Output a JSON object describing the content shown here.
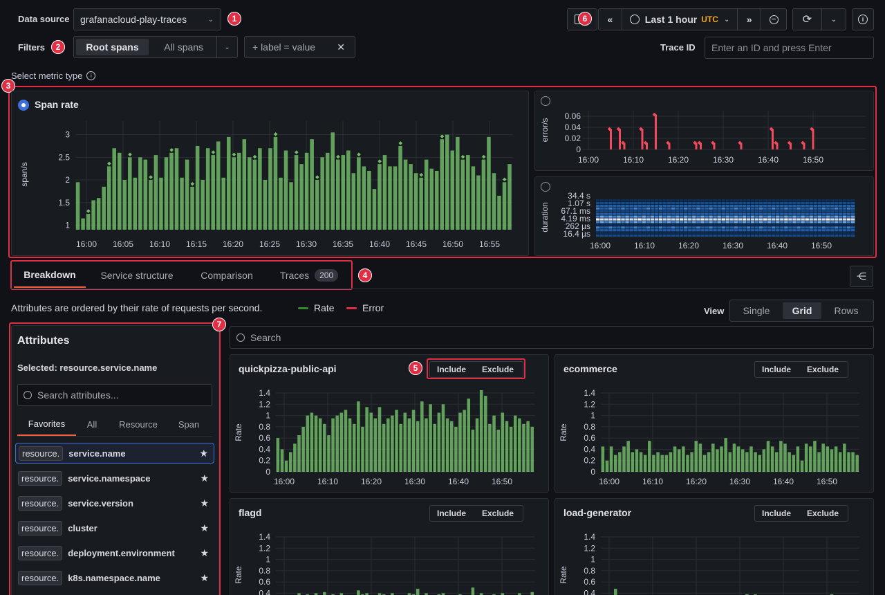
{
  "top": {
    "datasource_label": "Data source",
    "datasource_value": "grafanacloud-play-traces",
    "filters_label": "Filters",
    "root_spans": "Root spans",
    "all_spans": "All spans",
    "label_filter": "+ label = value",
    "trace_id_label": "Trace ID",
    "trace_id_placeholder": "Enter an ID and press Enter",
    "time_range": "Last 1 hour",
    "timezone": "UTC"
  },
  "badges": [
    "1",
    "2",
    "3",
    "4",
    "5",
    "6",
    "7"
  ],
  "metric": {
    "select_label": "Select metric type",
    "span_rate_title": "Span rate",
    "span_rate_ylabel": "span/s",
    "error_ylabel": "error/s",
    "duration_ylabel": "duration"
  },
  "tabs": {
    "breakdown": "Breakdown",
    "service_structure": "Service structure",
    "comparison": "Comparison",
    "traces": "Traces",
    "traces_count": "200"
  },
  "breakdown": {
    "description": "Attributes are ordered by their rate of requests per second.",
    "legend_rate": "Rate",
    "legend_error": "Error",
    "view_label": "View",
    "view_single": "Single",
    "view_grid": "Grid",
    "view_rows": "Rows",
    "search_placeholder": "Search"
  },
  "attributes": {
    "title": "Attributes",
    "selected": "Selected: resource.service.name",
    "search_placeholder": "Search attributes...",
    "tabs": [
      "Favorites",
      "All",
      "Resource",
      "Span"
    ],
    "items": [
      {
        "scope": "resource.",
        "name": "service.name"
      },
      {
        "scope": "resource.",
        "name": "service.namespace"
      },
      {
        "scope": "resource.",
        "name": "service.version"
      },
      {
        "scope": "resource.",
        "name": "cluster"
      },
      {
        "scope": "resource.",
        "name": "deployment.environment"
      },
      {
        "scope": "resource.",
        "name": "k8s.namespace.name"
      }
    ]
  },
  "panels": [
    {
      "title": "quickpizza-public-api",
      "include": "Include",
      "exclude": "Exclude",
      "ylabel": "Rate"
    },
    {
      "title": "ecommerce",
      "include": "Include",
      "exclude": "Exclude",
      "ylabel": "Rate"
    },
    {
      "title": "flagd",
      "include": "Include",
      "exclude": "Exclude",
      "ylabel": "Rate"
    },
    {
      "title": "load-generator",
      "include": "Include",
      "exclude": "Exclude",
      "ylabel": "Rate"
    }
  ],
  "colors": {
    "bar": "#73bf69",
    "error": "#f2495c",
    "accent": "#3d71d9",
    "highlight": "#e02f44",
    "utc": "#f5a623"
  },
  "chart_data": [
    {
      "type": "bar",
      "name": "span_rate",
      "x_ticks": [
        "16:00",
        "16:05",
        "16:10",
        "16:15",
        "16:20",
        "16:25",
        "16:30",
        "16:35",
        "16:40",
        "16:45",
        "16:50",
        "16:55"
      ],
      "y_ticks": [
        "1",
        "1.5",
        "2",
        "2.5",
        "3"
      ],
      "ylim": [
        0.9,
        3.3
      ],
      "values": [
        1.95,
        1.15,
        1.25,
        1.55,
        1.6,
        1.85,
        2.3,
        2.7,
        2.6,
        2.0,
        2.5,
        2.05,
        2.5,
        2.45,
        2.0,
        2.55,
        2.05,
        2.5,
        2.6,
        2.7,
        2.05,
        2.45,
        1.85,
        2.75,
        2.0,
        2.7,
        2.55,
        2.85,
        2.05,
        2.95,
        2.5,
        2.6,
        2.9,
        2.5,
        2.45,
        2.7,
        2.0,
        2.7,
        2.95,
        2.05,
        2.65,
        1.95,
        2.55,
        2.35,
        2.6,
        2.9,
        2.0,
        2.5,
        2.6,
        3.05,
        2.45,
        2.55,
        2.65,
        2.15,
        2.5,
        2.3,
        2.2,
        1.8,
        2.35,
        2.55,
        2.3,
        2.3,
        2.75,
        2.45,
        2.35,
        2.15,
        2.05,
        2.45,
        2.25,
        2.2,
        2.9,
        3.0,
        2.65,
        2.95,
        2.45,
        2.55,
        2.3,
        2.1,
        2.45,
        2.95,
        2.15,
        1.65,
        1.95,
        2.35
      ],
      "grid": true
    },
    {
      "type": "bar",
      "name": "error_rate",
      "x_ticks": [
        "16:00",
        "16:10",
        "16:20",
        "16:30",
        "16:40",
        "16:50"
      ],
      "y_ticks": [
        "0",
        "0.02",
        "0.04",
        "0.06"
      ],
      "ylim": [
        0,
        0.07
      ],
      "points": [
        [
          16.05,
          0.037
        ],
        [
          16.07,
          0.037
        ],
        [
          16.08,
          0.012
        ],
        [
          16.12,
          0.037
        ],
        [
          16.13,
          0.012
        ],
        [
          16.15,
          0.063
        ],
        [
          16.18,
          0.012
        ],
        [
          16.24,
          0.012
        ],
        [
          16.25,
          0.012
        ],
        [
          16.28,
          0.012
        ],
        [
          16.34,
          0.012
        ],
        [
          16.41,
          0.037
        ],
        [
          16.42,
          0.012
        ],
        [
          16.45,
          0.012
        ],
        [
          16.48,
          0.012
        ],
        [
          16.5,
          0.037
        ]
      ],
      "grid": true
    },
    {
      "type": "heatmap",
      "name": "duration",
      "x_ticks": [
        "16:00",
        "16:10",
        "16:20",
        "16:30",
        "16:40",
        "16:50"
      ],
      "y_ticks": [
        "34.4 s",
        "1.07 s",
        "67.1 ms",
        "4.19 ms",
        "262 µs",
        "16.4 µs"
      ]
    },
    {
      "type": "bar",
      "name": "quickpizza-public-api",
      "ylabel": "Rate",
      "x_ticks": [
        "16:00",
        "16:10",
        "16:20",
        "16:30",
        "16:40",
        "16:50"
      ],
      "y_ticks": [
        "0",
        "0.2",
        "0.4",
        "0.6",
        "0.8",
        "1",
        "1.2",
        "1.4"
      ],
      "ylim": [
        0,
        1.4
      ],
      "values": [
        0.6,
        0.4,
        0.2,
        0.35,
        0.5,
        0.65,
        0.8,
        1.0,
        1.05,
        1.0,
        0.95,
        0.85,
        0.65,
        0.95,
        1.0,
        1.05,
        1.1,
        0.95,
        0.85,
        1.25,
        0.8,
        1.15,
        1.05,
        0.95,
        1.15,
        0.85,
        0.95,
        1.0,
        1.1,
        0.85,
        1.05,
        0.95,
        1.1,
        0.9,
        1.25,
        0.95,
        1.2,
        0.85,
        1.05,
        1.2,
        0.95,
        0.9,
        0.8,
        1.05,
        1.1,
        1.3,
        0.75,
        0.95,
        1.45,
        1.35,
        0.85,
        1.0,
        0.75,
        1.05,
        0.9,
        0.8,
        1.0,
        0.95,
        0.85,
        0.9,
        0.8
      ],
      "grid": true
    },
    {
      "type": "bar",
      "name": "ecommerce",
      "ylabel": "Rate",
      "x_ticks": [
        "16:00",
        "16:10",
        "16:20",
        "16:30",
        "16:40",
        "16:50"
      ],
      "y_ticks": [
        "0",
        "0.2",
        "0.4",
        "0.6",
        "0.8",
        "1",
        "1.2",
        "1.4"
      ],
      "ylim": [
        0,
        1.4
      ],
      "values": [
        0.45,
        0.2,
        0.45,
        0.3,
        0.35,
        0.45,
        0.55,
        0.35,
        0.4,
        0.35,
        0.3,
        0.55,
        0.3,
        0.35,
        0.3,
        0.3,
        0.35,
        0.45,
        0.4,
        0.45,
        0.3,
        0.35,
        0.55,
        0.5,
        0.3,
        0.35,
        0.5,
        0.4,
        0.45,
        0.6,
        0.35,
        0.5,
        0.45,
        0.4,
        0.35,
        0.45,
        0.35,
        0.3,
        0.4,
        0.55,
        0.45,
        0.35,
        0.55,
        0.5,
        0.35,
        0.3,
        0.45,
        0.2,
        0.5,
        0.45,
        0.55,
        0.35,
        0.5,
        0.45,
        0.4,
        0.45,
        0.35,
        0.5,
        0.35,
        0.35,
        0.3
      ],
      "grid": true
    },
    {
      "type": "bar",
      "name": "flagd",
      "ylabel": "Rate",
      "x_ticks": [],
      "y_ticks": [
        "0.4",
        "0.6",
        "0.8",
        "1",
        "1.2",
        "1.4"
      ],
      "ylim": [
        0,
        1.4
      ],
      "values": [
        0.1,
        0.05,
        0.1,
        0.05,
        0.1,
        0.4,
        0.05,
        0.38,
        0.2,
        0.4,
        0.1,
        0.42,
        0.2,
        0.38,
        0.1,
        0.4,
        0.3,
        0.35,
        0.1,
        0.45,
        0.38,
        0.4,
        0.2,
        0.35,
        0.4,
        0.38,
        0.1,
        0.4,
        0.3,
        0.35,
        0.25,
        0.4,
        0.38,
        0.48,
        0.35,
        0.4,
        0.2,
        0.35,
        0.38,
        0.4,
        0.2,
        0.3,
        0.35,
        0.38,
        0.3,
        0.35,
        0.5,
        0.35,
        0.4,
        0.2,
        0.35,
        0.38,
        0.25,
        0.4,
        0.3,
        0.35,
        0.35,
        0.4,
        0.35,
        0.3,
        0.42
      ],
      "grid": true
    },
    {
      "type": "bar",
      "name": "load-generator",
      "ylabel": "Rate",
      "x_ticks": [],
      "y_ticks": [
        "0.4",
        "0.6",
        "0.8",
        "1",
        "1.2",
        "1.4"
      ],
      "ylim": [
        0,
        1.4
      ],
      "values": [
        0.1,
        0.05,
        0.1,
        0.48,
        0.1,
        0.05,
        0.1,
        0.05,
        0.1,
        0.05,
        0.1,
        0.05,
        0.1,
        0.05,
        0.1,
        0.05,
        0.1,
        0.05,
        0.1,
        0.05,
        0.1,
        0.05,
        0.1,
        0.05,
        0.1,
        0.05,
        0.1,
        0.05,
        0.1,
        0.05,
        0.1,
        0.05,
        0.1,
        0.05,
        0.38,
        0.1,
        0.38,
        0.1,
        0.05,
        0.1,
        0.05,
        0.1,
        0.05,
        0.1,
        0.05,
        0.1,
        0.05,
        0.1,
        0.05,
        0.1,
        0.05,
        0.1,
        0.05,
        0.1,
        0.38,
        0.1,
        0.05,
        0.1,
        0.05,
        0.1,
        0.05
      ],
      "grid": true
    }
  ]
}
